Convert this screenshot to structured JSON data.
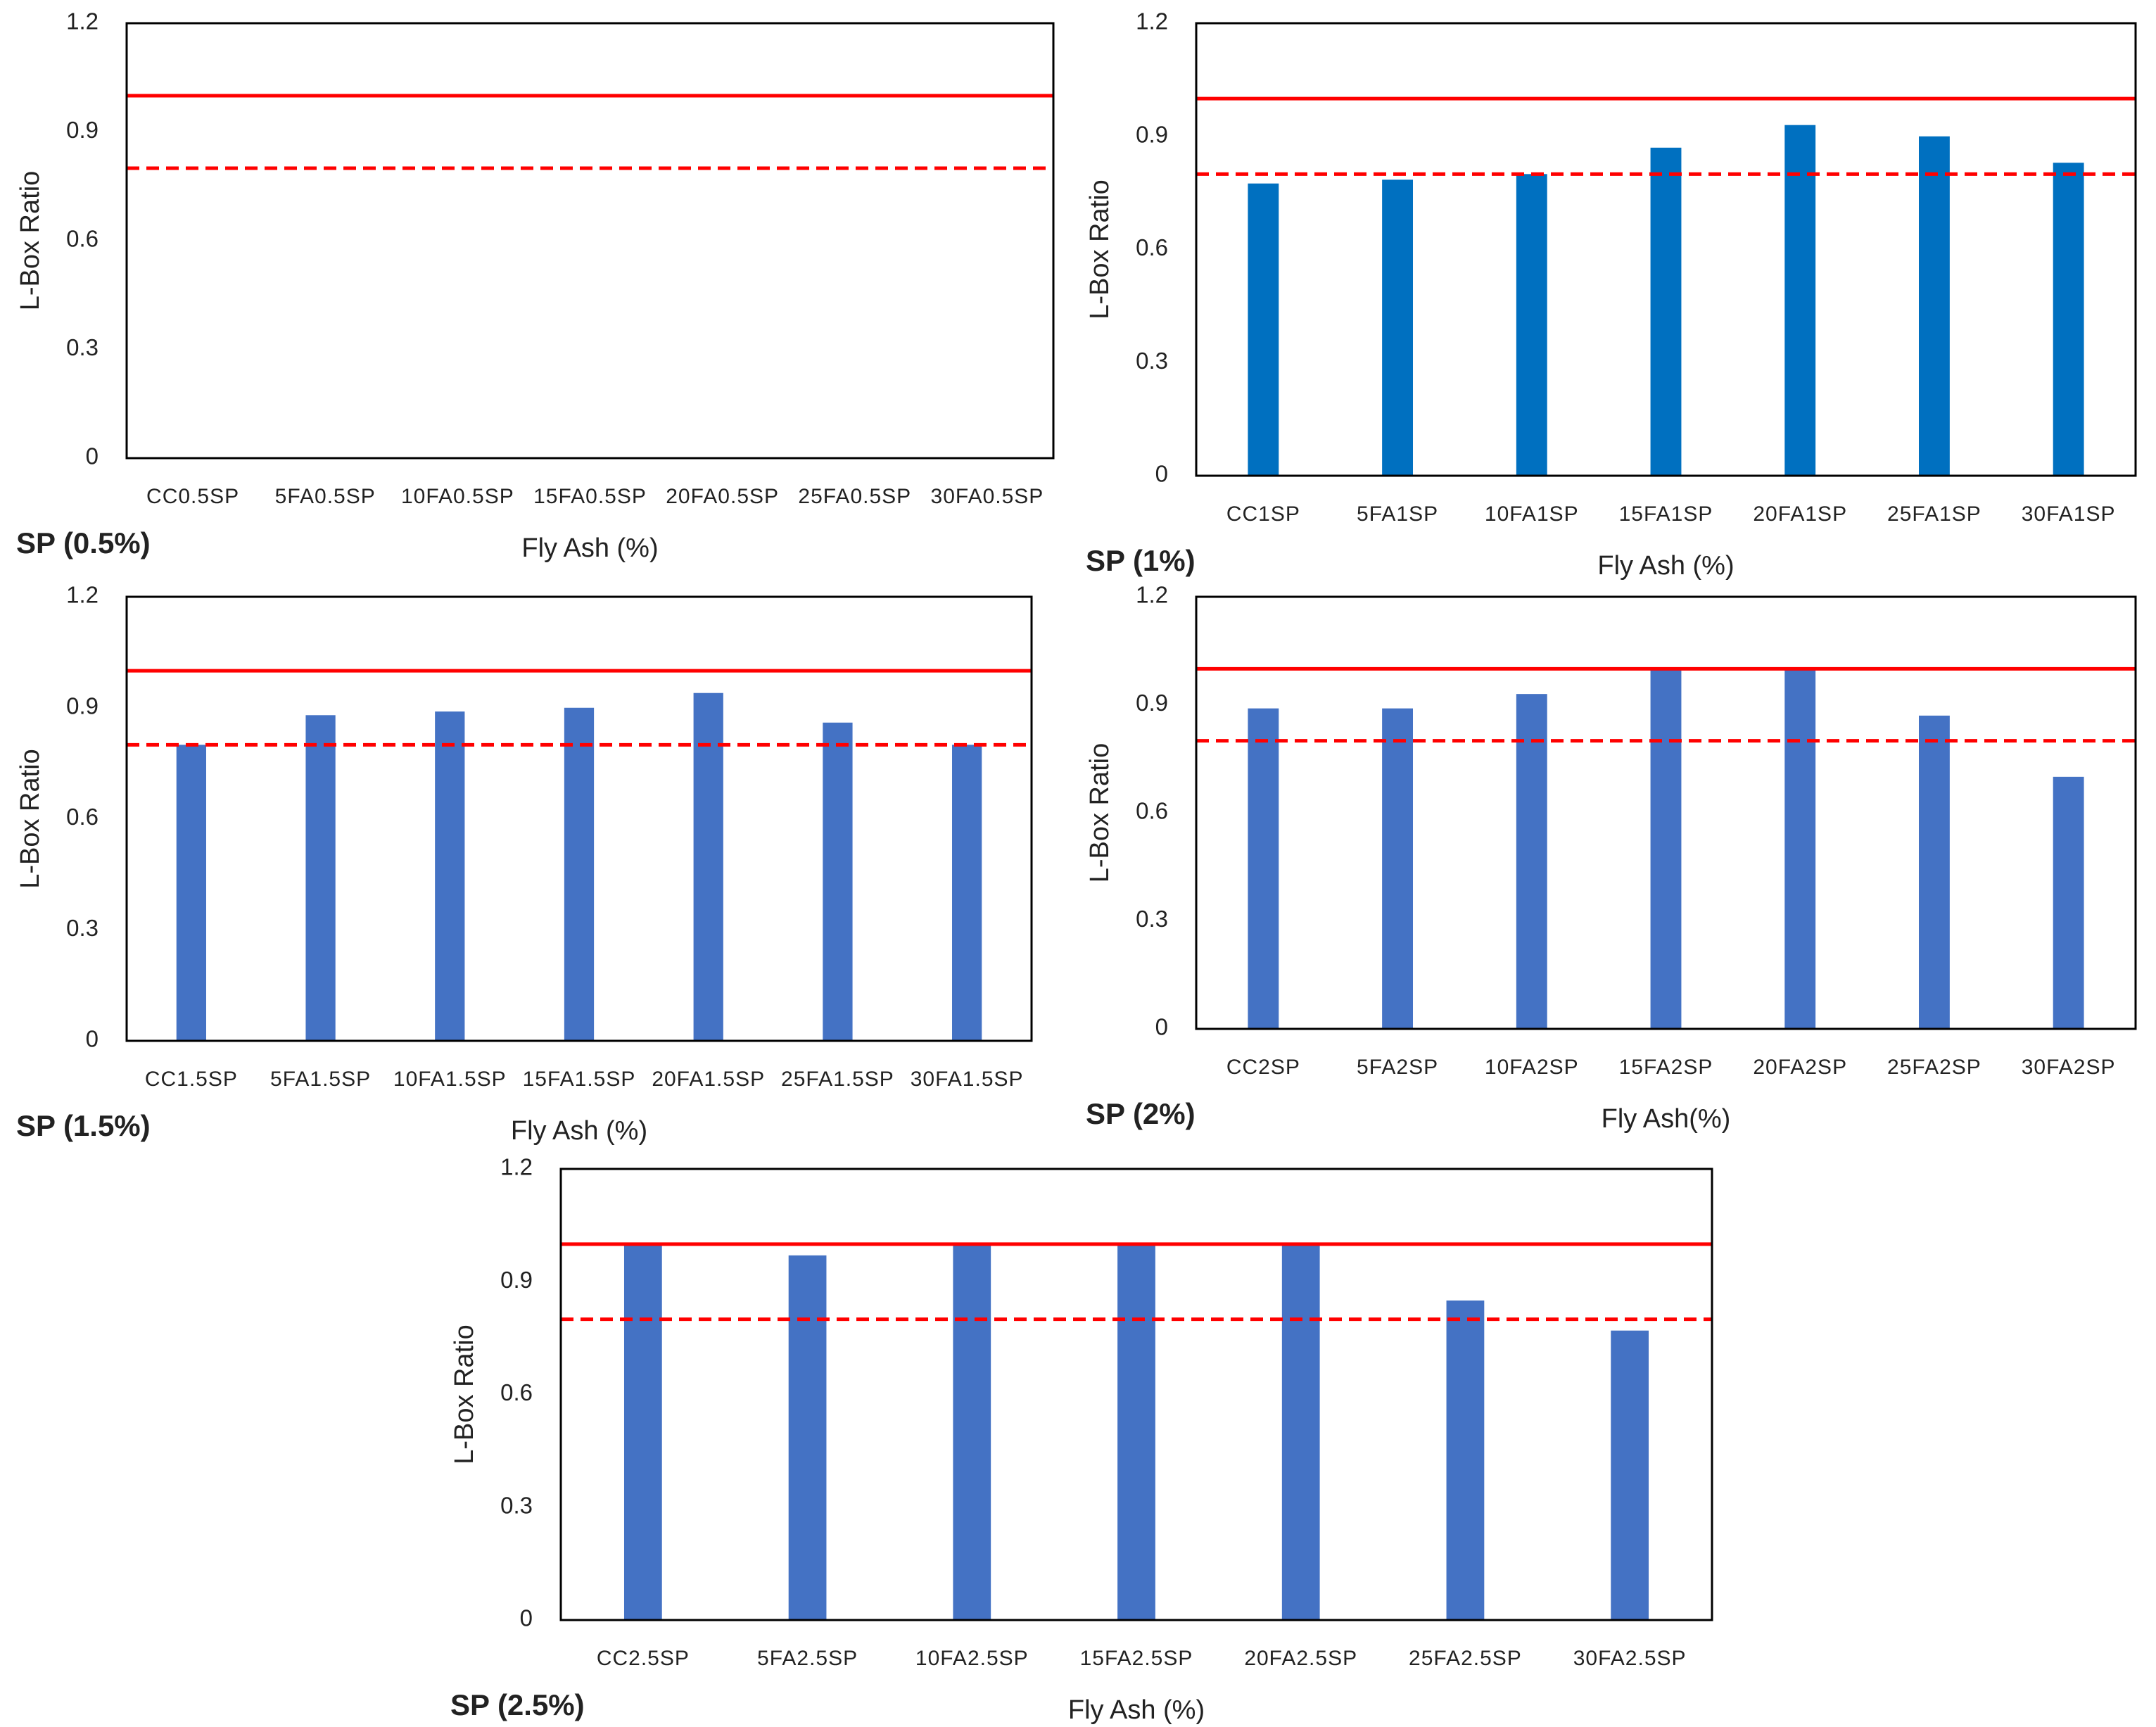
{
  "chart_data": [
    {
      "type": "bar",
      "label": "SP (0.5%)",
      "ylabel": "L-Box Ratio",
      "xlabel": "Fly Ash (%)",
      "color": "#0070c0",
      "categories": [
        "CC0.5SP",
        "5FA0.5SP",
        "10FA0.5SP",
        "15FA0.5SP",
        "20FA0.5SP",
        "25FA0.5SP",
        "30FA0.5SP"
      ],
      "values": [
        null,
        null,
        null,
        null,
        null,
        null,
        null
      ],
      "ylim": [
        0,
        1.2
      ],
      "yticks": [
        0,
        0.3,
        0.6,
        0.9,
        1.2
      ],
      "reference_lines": [
        {
          "value": 1,
          "style": "solid",
          "color": "#ff0000"
        },
        {
          "value": 0.8,
          "style": "dashed",
          "color": "#ff0000"
        }
      ]
    },
    {
      "type": "bar",
      "label": "SP (1%)",
      "ylabel": "L-Box Ratio",
      "xlabel": "Fly Ash (%)",
      "color": "#0070c0",
      "categories": [
        "CC1SP",
        "5FA1SP",
        "10FA1SP",
        "15FA1SP",
        "20FA1SP",
        "25FA1SP",
        "30FA1SP"
      ],
      "values": [
        0.775,
        0.785,
        0.8,
        0.87,
        0.93,
        0.9,
        0.83
      ],
      "ylim": [
        0,
        1.2
      ],
      "yticks": [
        0,
        0.3,
        0.6,
        0.9,
        1.2
      ],
      "reference_lines": [
        {
          "value": 1,
          "style": "solid",
          "color": "#ff0000"
        },
        {
          "value": 0.8,
          "style": "dashed",
          "color": "#ff0000"
        }
      ]
    },
    {
      "type": "bar",
      "label": "SP (1.5%)",
      "ylabel": "L-Box Ratio",
      "xlabel": "Fly Ash (%)",
      "color": "#4472c4",
      "categories": [
        "CC1.5SP",
        "5FA1.5SP",
        "10FA1.5SP",
        "15FA1.5SP",
        "20FA1.5SP",
        "25FA1.5SP",
        "30FA1.5SP"
      ],
      "values": [
        0.8,
        0.88,
        0.89,
        0.9,
        0.94,
        0.86,
        0.8
      ],
      "ylim": [
        0,
        1.2
      ],
      "yticks": [
        0,
        0.3,
        0.6,
        0.9,
        1.2
      ],
      "reference_lines": [
        {
          "value": 1,
          "style": "solid",
          "color": "#ff0000"
        },
        {
          "value": 0.8,
          "style": "dashed",
          "color": "#ff0000"
        }
      ]
    },
    {
      "type": "bar",
      "label": "SP (2%)",
      "ylabel": "L-Box Ratio",
      "xlabel": "Fly Ash(%)",
      "color": "#4472c4",
      "categories": [
        "CC2SP",
        "5FA2SP",
        "10FA2SP",
        "15FA2SP",
        "20FA2SP",
        "25FA2SP",
        "30FA2SP"
      ],
      "values": [
        0.89,
        0.89,
        0.93,
        1.0,
        1.0,
        0.87,
        0.7
      ],
      "ylim": [
        0,
        1.2
      ],
      "yticks": [
        0,
        0.3,
        0.6,
        0.9,
        1.2
      ],
      "reference_lines": [
        {
          "value": 1,
          "style": "solid",
          "color": "#ff0000"
        },
        {
          "value": 0.8,
          "style": "dashed",
          "color": "#ff0000"
        }
      ]
    },
    {
      "type": "bar",
      "label": "SP (2.5%)",
      "ylabel": "L-Box Ratio",
      "xlabel": "Fly Ash (%)",
      "color": "#4472c4",
      "categories": [
        "CC2.5SP",
        "5FA2.5SP",
        "10FA2.5SP",
        "15FA2.5SP",
        "20FA2.5SP",
        "25FA2.5SP",
        "30FA2.5SP"
      ],
      "values": [
        1.0,
        0.97,
        1.0,
        1.0,
        1.0,
        0.85,
        0.77
      ],
      "ylim": [
        0,
        1.2
      ],
      "yticks": [
        0,
        0.3,
        0.6,
        0.9,
        1.2
      ],
      "reference_lines": [
        {
          "value": 1,
          "style": "solid",
          "color": "#ff0000"
        },
        {
          "value": 0.8,
          "style": "dashed",
          "color": "#ff0000"
        }
      ]
    }
  ]
}
